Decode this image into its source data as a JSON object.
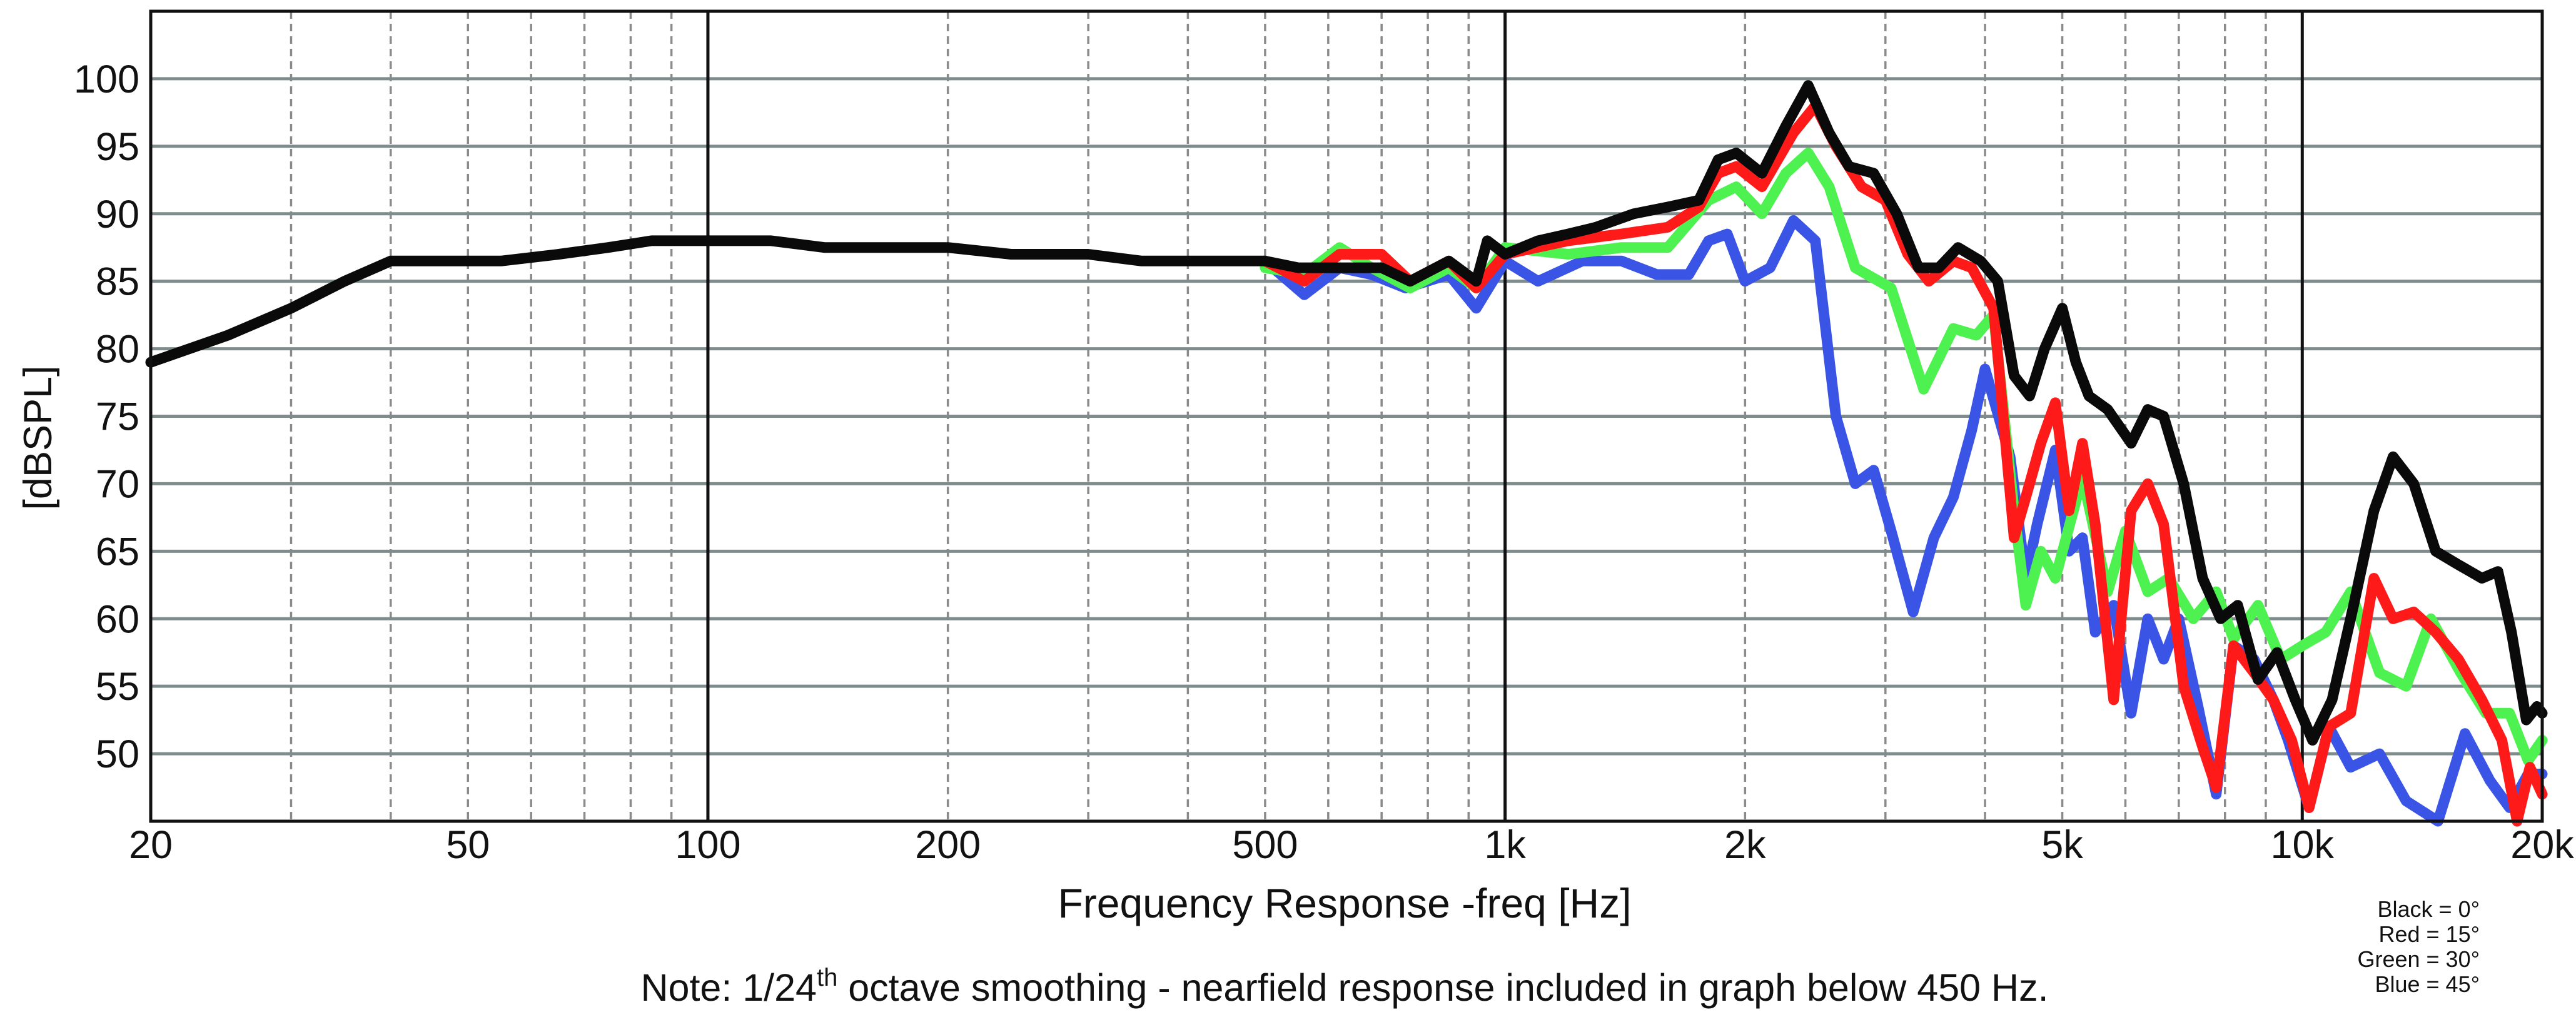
{
  "chart_data": {
    "type": "line",
    "x_scale": "log",
    "xlim": [
      20,
      20000
    ],
    "ylim": [
      45,
      105
    ],
    "x_ticks": [
      {
        "value": 20,
        "label": "20"
      },
      {
        "value": 50,
        "label": "50"
      },
      {
        "value": 100,
        "label": "100"
      },
      {
        "value": 200,
        "label": "200"
      },
      {
        "value": 500,
        "label": "500"
      },
      {
        "value": 1000,
        "label": "1k"
      },
      {
        "value": 2000,
        "label": "2k"
      },
      {
        "value": 5000,
        "label": "5k"
      },
      {
        "value": 10000,
        "label": "10k"
      },
      {
        "value": 20000,
        "label": "20k"
      }
    ],
    "y_ticks": [
      50,
      55,
      60,
      65,
      70,
      75,
      80,
      85,
      90,
      95,
      100
    ],
    "ylabel": "[dBSPL]",
    "xlabel": "Frequency Response -freq [Hz]",
    "note": {
      "before": "Note: 1/24",
      "sup": "th",
      "after": " octave smoothing - nearfield response included in graph below 450 Hz."
    },
    "legend": [
      "Black = 0°",
      "Red = 15°",
      "Green = 30°",
      "Blue = 45°"
    ],
    "grid": true,
    "series": [
      {
        "color": "#3a55e6",
        "points": [
          [
            500,
            86.5
          ],
          [
            560,
            84
          ],
          [
            620,
            86
          ],
          [
            680,
            85.5
          ],
          [
            750,
            84.5
          ],
          [
            850,
            85.5
          ],
          [
            920,
            83
          ],
          [
            1000,
            86.5
          ],
          [
            1100,
            85
          ],
          [
            1250,
            86.5
          ],
          [
            1400,
            86.5
          ],
          [
            1550,
            85.5
          ],
          [
            1700,
            85.5
          ],
          [
            1800,
            88
          ],
          [
            1900,
            88.5
          ],
          [
            2000,
            85
          ],
          [
            2150,
            86
          ],
          [
            2300,
            89.5
          ],
          [
            2450,
            88
          ],
          [
            2600,
            75
          ],
          [
            2750,
            70
          ],
          [
            2900,
            71
          ],
          [
            3050,
            66.5
          ],
          [
            3250,
            60.5
          ],
          [
            3450,
            66
          ],
          [
            3650,
            69
          ],
          [
            3850,
            74
          ],
          [
            4000,
            78.5
          ],
          [
            4300,
            72
          ],
          [
            4500,
            63
          ],
          [
            4650,
            67
          ],
          [
            4900,
            72.5
          ],
          [
            5100,
            65
          ],
          [
            5300,
            66
          ],
          [
            5500,
            59
          ],
          [
            5800,
            61
          ],
          [
            6100,
            53
          ],
          [
            6400,
            60
          ],
          [
            6700,
            57
          ],
          [
            7000,
            60
          ],
          [
            7400,
            53.5
          ],
          [
            7800,
            47
          ],
          [
            8200,
            58
          ],
          [
            8700,
            57
          ],
          [
            9200,
            54
          ],
          [
            9600,
            51
          ],
          [
            10200,
            46
          ],
          [
            10800,
            52
          ],
          [
            11500,
            49
          ],
          [
            12500,
            50
          ],
          [
            13500,
            46.5
          ],
          [
            14800,
            45
          ],
          [
            16000,
            51.5
          ],
          [
            17200,
            48
          ],
          [
            18200,
            46
          ],
          [
            19200,
            48.5
          ],
          [
            20000,
            48.5
          ]
        ]
      },
      {
        "color": "#4ef250",
        "points": [
          [
            500,
            86
          ],
          [
            560,
            85.5
          ],
          [
            620,
            87.5
          ],
          [
            680,
            86
          ],
          [
            760,
            84.5
          ],
          [
            850,
            86
          ],
          [
            920,
            84.5
          ],
          [
            1000,
            87.5
          ],
          [
            1200,
            87
          ],
          [
            1400,
            87.5
          ],
          [
            1600,
            87.5
          ],
          [
            1800,
            91
          ],
          [
            1950,
            92
          ],
          [
            2100,
            90
          ],
          [
            2250,
            93
          ],
          [
            2400,
            94.5
          ],
          [
            2550,
            92
          ],
          [
            2750,
            86
          ],
          [
            3050,
            84.5
          ],
          [
            3350,
            77
          ],
          [
            3650,
            81.5
          ],
          [
            3900,
            81
          ],
          [
            4100,
            82.5
          ],
          [
            4350,
            68
          ],
          [
            4500,
            61
          ],
          [
            4700,
            65
          ],
          [
            4900,
            63
          ],
          [
            5300,
            70.5
          ],
          [
            5700,
            62
          ],
          [
            6000,
            66.5
          ],
          [
            6400,
            62
          ],
          [
            6800,
            63
          ],
          [
            7300,
            60
          ],
          [
            7800,
            62
          ],
          [
            8200,
            58.5
          ],
          [
            8800,
            61
          ],
          [
            9400,
            57
          ],
          [
            10000,
            58
          ],
          [
            10700,
            59
          ],
          [
            11500,
            62
          ],
          [
            12500,
            56
          ],
          [
            13500,
            55
          ],
          [
            14500,
            60
          ],
          [
            15800,
            56
          ],
          [
            17000,
            53
          ],
          [
            18200,
            53
          ],
          [
            19200,
            49.5
          ],
          [
            20000,
            51
          ]
        ]
      },
      {
        "color": "#ff1a1a",
        "points": [
          [
            500,
            86.5
          ],
          [
            560,
            85
          ],
          [
            620,
            87
          ],
          [
            700,
            87
          ],
          [
            760,
            85
          ],
          [
            850,
            86.5
          ],
          [
            920,
            84.5
          ],
          [
            1000,
            87
          ],
          [
            1200,
            88
          ],
          [
            1400,
            88.5
          ],
          [
            1600,
            89
          ],
          [
            1750,
            90.5
          ],
          [
            1850,
            93
          ],
          [
            1950,
            93.5
          ],
          [
            2100,
            92
          ],
          [
            2300,
            96
          ],
          [
            2450,
            98
          ],
          [
            2600,
            95
          ],
          [
            2800,
            92
          ],
          [
            3000,
            91
          ],
          [
            3200,
            87
          ],
          [
            3400,
            85
          ],
          [
            3650,
            86.5
          ],
          [
            3850,
            86
          ],
          [
            4100,
            83
          ],
          [
            4350,
            66
          ],
          [
            4500,
            69
          ],
          [
            4700,
            73
          ],
          [
            4900,
            76
          ],
          [
            5100,
            68
          ],
          [
            5300,
            73
          ],
          [
            5500,
            67
          ],
          [
            5800,
            54
          ],
          [
            6100,
            68
          ],
          [
            6400,
            70
          ],
          [
            6700,
            67
          ],
          [
            7100,
            55
          ],
          [
            7500,
            50.5
          ],
          [
            7800,
            47.5
          ],
          [
            8200,
            58
          ],
          [
            8700,
            56
          ],
          [
            9200,
            54
          ],
          [
            9700,
            51
          ],
          [
            10200,
            46
          ],
          [
            10800,
            52
          ],
          [
            11500,
            53
          ],
          [
            12300,
            63
          ],
          [
            13000,
            60
          ],
          [
            13800,
            60.5
          ],
          [
            14700,
            59
          ],
          [
            15700,
            57
          ],
          [
            16800,
            54
          ],
          [
            17800,
            51
          ],
          [
            18600,
            45
          ],
          [
            19300,
            49
          ],
          [
            20000,
            47
          ]
        ]
      },
      {
        "color": "#0a0a0a",
        "points": [
          [
            20,
            79
          ],
          [
            25,
            81
          ],
          [
            30,
            83
          ],
          [
            35,
            85
          ],
          [
            40,
            86.5
          ],
          [
            45,
            86.5
          ],
          [
            55,
            86.5
          ],
          [
            65,
            87
          ],
          [
            75,
            87.5
          ],
          [
            85,
            88
          ],
          [
            100,
            88
          ],
          [
            120,
            88
          ],
          [
            140,
            87.5
          ],
          [
            170,
            87.5
          ],
          [
            200,
            87.5
          ],
          [
            240,
            87
          ],
          [
            300,
            87
          ],
          [
            350,
            86.5
          ],
          [
            400,
            86.5
          ],
          [
            450,
            86.5
          ],
          [
            500,
            86.5
          ],
          [
            550,
            86
          ],
          [
            600,
            86
          ],
          [
            700,
            86
          ],
          [
            760,
            85
          ],
          [
            850,
            86.5
          ],
          [
            920,
            85
          ],
          [
            950,
            88
          ],
          [
            1000,
            87
          ],
          [
            1100,
            88
          ],
          [
            1200,
            88.5
          ],
          [
            1300,
            89
          ],
          [
            1450,
            90
          ],
          [
            1600,
            90.5
          ],
          [
            1750,
            91
          ],
          [
            1850,
            94
          ],
          [
            1950,
            94.5
          ],
          [
            2100,
            93
          ],
          [
            2250,
            96.5
          ],
          [
            2400,
            99.5
          ],
          [
            2550,
            96
          ],
          [
            2700,
            93.5
          ],
          [
            2900,
            93
          ],
          [
            3100,
            90
          ],
          [
            3300,
            86
          ],
          [
            3500,
            86
          ],
          [
            3700,
            87.5
          ],
          [
            3950,
            86.5
          ],
          [
            4150,
            85
          ],
          [
            4350,
            78
          ],
          [
            4550,
            76.5
          ],
          [
            4750,
            80
          ],
          [
            5000,
            83
          ],
          [
            5200,
            79
          ],
          [
            5400,
            76.5
          ],
          [
            5700,
            75.5
          ],
          [
            6100,
            73
          ],
          [
            6400,
            75.5
          ],
          [
            6700,
            75
          ],
          [
            7100,
            70
          ],
          [
            7500,
            63
          ],
          [
            7900,
            60
          ],
          [
            8300,
            61
          ],
          [
            8800,
            55.5
          ],
          [
            9300,
            57.5
          ],
          [
            9800,
            54
          ],
          [
            10300,
            51
          ],
          [
            10900,
            54
          ],
          [
            11600,
            61
          ],
          [
            12300,
            68
          ],
          [
            13000,
            72
          ],
          [
            13800,
            70
          ],
          [
            14700,
            65
          ],
          [
            15700,
            64
          ],
          [
            16800,
            63
          ],
          [
            17600,
            63.5
          ],
          [
            18300,
            59
          ],
          [
            19100,
            52.5
          ],
          [
            19700,
            53.5
          ],
          [
            20000,
            53
          ]
        ]
      }
    ]
  }
}
